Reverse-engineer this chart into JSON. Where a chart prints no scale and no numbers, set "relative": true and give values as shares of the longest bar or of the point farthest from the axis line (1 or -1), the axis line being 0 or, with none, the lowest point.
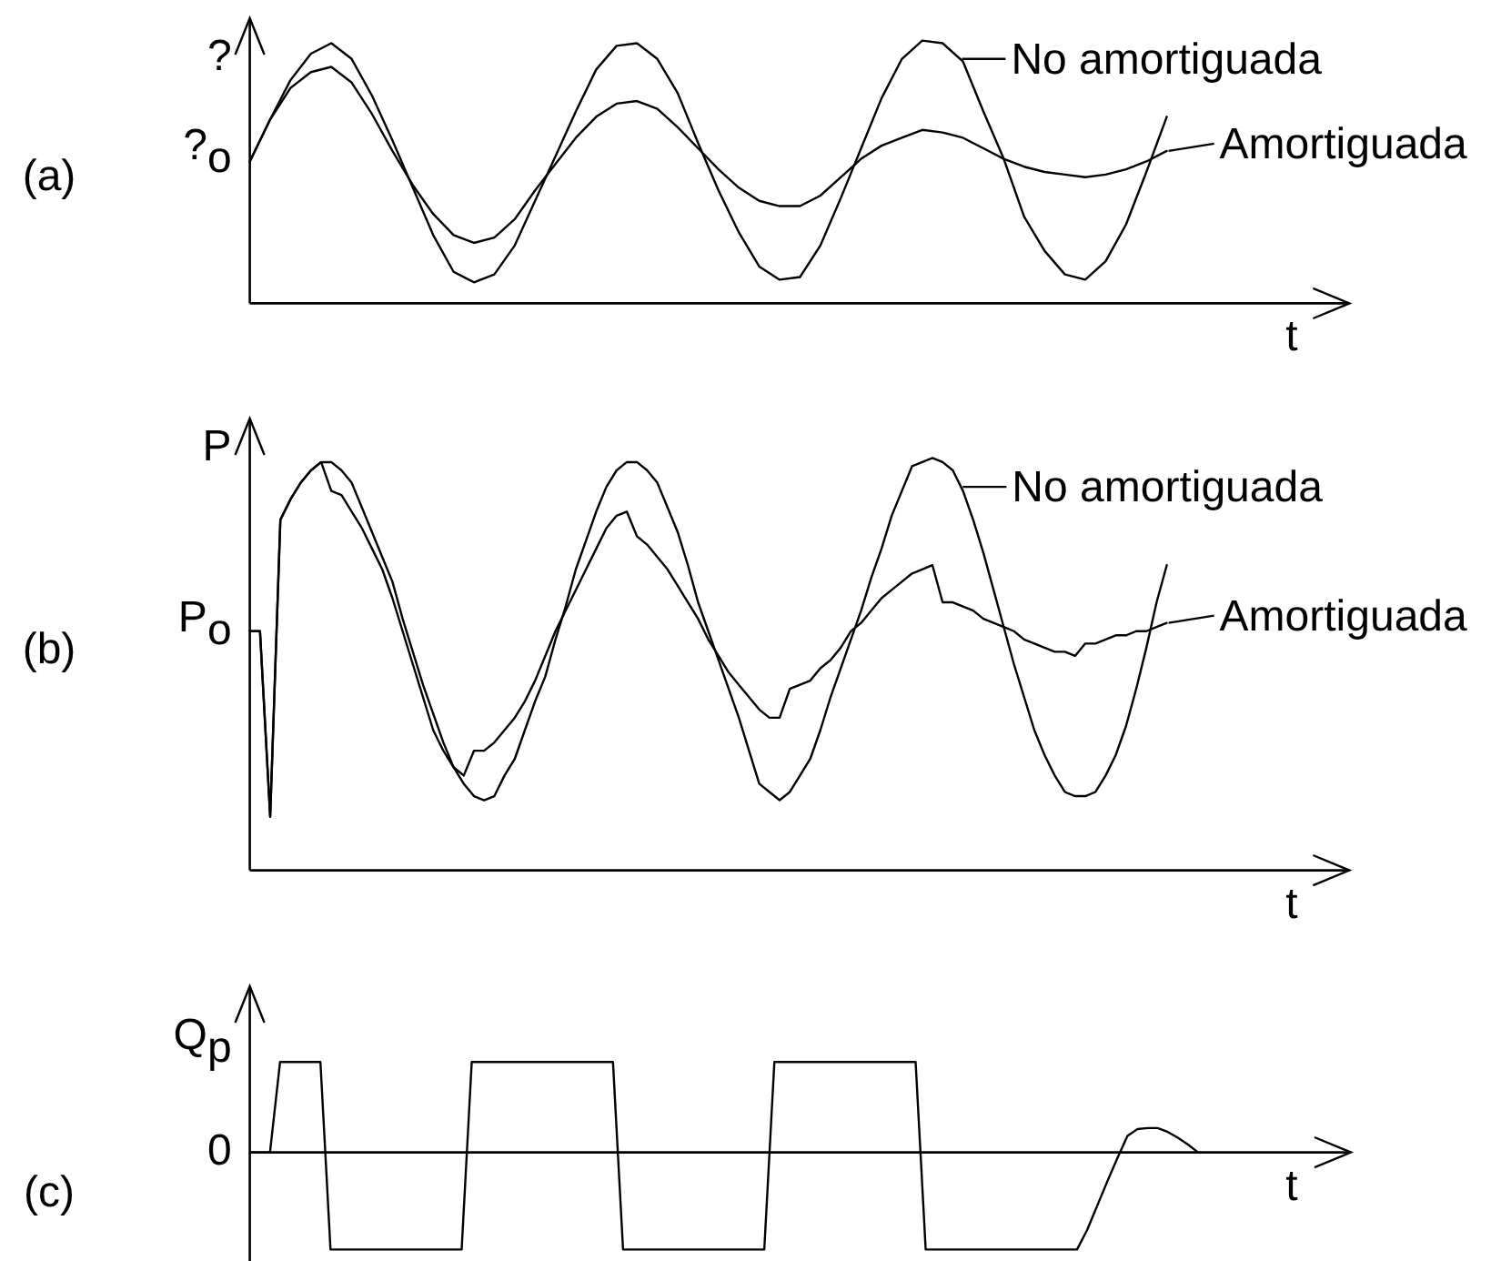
{
  "chart_data": [
    {
      "type": "line",
      "title": "(a)",
      "xlabel": "t",
      "relative": true,
      "legend": "top right",
      "categories": [
        null,
        null,
        null,
        null,
        null,
        null,
        null,
        null,
        null,
        null,
        null,
        null,
        null,
        null,
        null,
        null,
        null,
        null,
        null,
        null,
        null,
        null,
        null,
        null,
        null,
        null,
        null,
        null,
        null,
        null,
        null,
        null,
        null,
        null,
        null,
        null,
        null,
        null,
        null,
        null,
        null,
        null,
        null,
        null,
        null,
        null
      ],
      "series": [
        {
          "name": "No amortiguada",
          "color": "#000000",
          "values": [
            0.54,
            0.7,
            0.85,
            0.95,
            0.99,
            0.93,
            0.79,
            0.62,
            0.44,
            0.26,
            0.12,
            0.08,
            0.11,
            0.22,
            0.39,
            0.56,
            0.73,
            0.89,
            0.98,
            0.99,
            0.93,
            0.8,
            0.61,
            0.43,
            0.27,
            0.14,
            0.09,
            0.1,
            0.22,
            0.4,
            0.59,
            0.78,
            0.93,
            1,
            0.99,
            0.92,
            0.73,
            0.55,
            0.33,
            0.2,
            0.11,
            0.09,
            0.16,
            0.3,
            0.5,
            0.71
          ]
        },
        {
          "name": "Amortiguada",
          "color": "#000000",
          "values": [
            0.54,
            0.7,
            0.82,
            0.88,
            0.9,
            0.84,
            0.72,
            0.58,
            0.45,
            0.34,
            0.26,
            0.23,
            0.25,
            0.32,
            0.43,
            0.53,
            0.63,
            0.71,
            0.76,
            0.77,
            0.74,
            0.67,
            0.59,
            0.51,
            0.44,
            0.39,
            0.37,
            0.37,
            0.41,
            0.48,
            0.55,
            0.6,
            0.63,
            0.66,
            0.65,
            0.63,
            0.59,
            0.55,
            0.52,
            0.5,
            0.49,
            0.48,
            0.49,
            0.51,
            0.54,
            0.58
          ]
        }
      ],
      "annotations": [
        "?",
        "?$_{o}$"
      ]
    },
    {
      "type": "line",
      "title": "(b)",
      "xlabel": "t",
      "relative": true,
      "legend": "top right",
      "categories": [
        null,
        null,
        null,
        null,
        null,
        null,
        null,
        null,
        null,
        null,
        null,
        null,
        null,
        null,
        null,
        null,
        null,
        null,
        null,
        null,
        null,
        null,
        null,
        null,
        null,
        null,
        null,
        null,
        null,
        null,
        null,
        null,
        null,
        null,
        null,
        null,
        null,
        null,
        null,
        null,
        null,
        null,
        null,
        null,
        null,
        null,
        null,
        null,
        null,
        null,
        null,
        null,
        null,
        null,
        null,
        null,
        null,
        null,
        null,
        null,
        null,
        null,
        null,
        null,
        null,
        null,
        null,
        null,
        null,
        null,
        null,
        null,
        null,
        null,
        null,
        null,
        null,
        null,
        null,
        null,
        null,
        null,
        null,
        null,
        null,
        null,
        null,
        null,
        null,
        null,
        null
      ],
      "series": [
        {
          "name": "No amortiguada",
          "color": "#000000",
          "values": [
            0.58,
            0.58,
            0.13,
            0.85,
            0.9,
            0.94,
            0.97,
            0.99,
            0.99,
            0.97,
            0.94,
            0.88,
            0.82,
            0.76,
            0.7,
            0.61,
            0.53,
            0.45,
            0.38,
            0.31,
            0.25,
            0.21,
            0.18,
            0.17,
            0.18,
            0.23,
            0.27,
            0.34,
            0.41,
            0.47,
            0.56,
            0.64,
            0.73,
            0.8,
            0.87,
            0.93,
            0.97,
            0.99,
            0.99,
            0.97,
            0.94,
            0.88,
            0.82,
            0.74,
            0.65,
            0.58,
            0.51,
            0.44,
            0.37,
            0.29,
            0.21,
            0.19,
            0.17,
            0.19,
            0.23,
            0.27,
            0.34,
            0.42,
            0.49,
            0.56,
            0.63,
            0.71,
            0.78,
            0.86,
            0.92,
            0.98,
            0.99,
            1,
            0.99,
            0.97,
            0.92,
            0.85,
            0.77,
            0.68,
            0.59,
            0.5,
            0.42,
            0.34,
            0.28,
            0.23,
            0.19,
            0.18,
            0.18,
            0.19,
            0.23,
            0.28,
            0.35,
            0.44,
            0.54,
            0.65,
            0.74
          ]
        },
        {
          "name": "Amortiguada",
          "color": "#000000",
          "values": [
            0.58,
            0.58,
            0.13,
            0.85,
            0.9,
            0.94,
            0.97,
            0.99,
            0.92,
            0.91,
            0.87,
            0.83,
            0.78,
            0.73,
            0.66,
            0.58,
            0.5,
            0.42,
            0.34,
            0.29,
            0.25,
            0.23,
            0.29,
            0.29,
            0.31,
            0.34,
            0.37,
            0.41,
            0.46,
            0.52,
            0.58,
            0.63,
            0.68,
            0.73,
            0.78,
            0.83,
            0.86,
            0.87,
            0.81,
            0.79,
            0.76,
            0.73,
            0.69,
            0.65,
            0.61,
            0.56,
            0.52,
            0.48,
            0.45,
            0.42,
            0.39,
            0.37,
            0.37,
            0.44,
            0.45,
            0.46,
            0.49,
            0.51,
            0.54,
            0.58,
            0.6,
            0.63,
            0.66,
            0.68,
            0.7,
            0.72,
            0.73,
            0.74,
            0.65,
            0.65,
            0.64,
            0.63,
            0.61,
            0.6,
            0.59,
            0.58,
            0.56,
            0.55,
            0.54,
            0.53,
            0.53,
            0.52,
            0.55,
            0.55,
            0.56,
            0.57,
            0.57,
            0.58,
            0.58,
            0.59,
            0.6
          ]
        }
      ],
      "annotations": [
        "P",
        "P$_{o}$"
      ]
    },
    {
      "type": "line",
      "title": "(c)",
      "xlabel": "t",
      "relative": true,
      "categories": [
        null,
        null,
        null,
        null,
        null,
        null,
        null,
        null,
        null,
        null,
        null,
        null,
        null,
        null,
        null,
        null,
        null,
        null,
        null,
        null,
        null,
        null,
        null,
        null,
        null,
        null,
        null,
        null,
        null,
        null,
        null,
        null,
        null,
        null,
        null,
        null,
        null,
        null,
        null,
        null,
        null,
        null,
        null,
        null,
        null,
        null,
        null,
        null,
        null,
        null,
        null,
        null,
        null,
        null,
        null,
        null,
        null,
        null,
        null,
        null,
        null,
        null,
        null,
        null,
        null,
        null,
        null,
        null,
        null,
        null,
        null,
        null,
        null,
        null,
        null,
        null,
        null,
        null,
        null,
        null,
        null,
        null,
        null,
        null,
        null,
        null,
        null,
        null,
        null,
        null,
        null,
        null,
        null,
        null,
        null
      ],
      "series": [
        {
          "color": "#000000",
          "values": [
            0,
            0,
            0,
            0.93,
            0.93,
            0.93,
            0.93,
            0.93,
            -1,
            -1,
            -1,
            -1,
            -1,
            -1,
            -1,
            -1,
            -1,
            -1,
            -1,
            -1,
            -1,
            -1,
            0.93,
            0.93,
            0.93,
            0.93,
            0.93,
            0.93,
            0.93,
            0.93,
            0.93,
            0.93,
            0.93,
            0.93,
            0.93,
            0.93,
            0.93,
            -1,
            -1,
            -1,
            -1,
            -1,
            -1,
            -1,
            -1,
            -1,
            -1,
            -1,
            -1,
            -1,
            -1,
            -1,
            0.93,
            0.93,
            0.93,
            0.93,
            0.93,
            0.93,
            0.93,
            0.93,
            0.93,
            0.93,
            0.93,
            0.93,
            0.93,
            0.93,
            0.93,
            -1,
            -1,
            -1,
            -1,
            -1,
            -1,
            -1,
            -1,
            -1,
            -1,
            -1,
            -1,
            -1,
            -1,
            -1,
            -1,
            -0.8,
            -0.55,
            -0.3,
            -0.06,
            0.17,
            0.24,
            0.25,
            0.25,
            0.21,
            0.15,
            0.08,
            0
          ]
        }
      ],
      "annotations": [
        "Q$_{p}$",
        "0"
      ]
    }
  ]
}
